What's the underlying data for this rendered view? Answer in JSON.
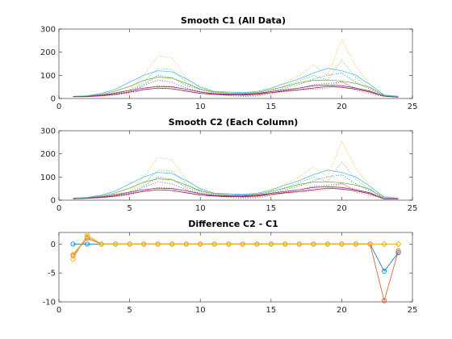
{
  "chart_data": [
    {
      "type": "line",
      "title": "Smooth C1 (All Data)",
      "xlim": [
        0,
        25
      ],
      "ylim": [
        0,
        300
      ],
      "xticks": [
        "0",
        "5",
        "10",
        "15",
        "20",
        "25"
      ],
      "yticks": [
        "0",
        "100",
        "200",
        "300"
      ],
      "grid": false,
      "x": [
        1,
        2,
        3,
        4,
        5,
        6,
        7,
        8,
        9,
        10,
        11,
        12,
        13,
        14,
        15,
        16,
        17,
        18,
        19,
        20,
        21,
        22,
        23,
        24
      ],
      "series": [
        {
          "style": "dotted",
          "color": "#0072bd",
          "values": [
            9,
            9,
            14,
            22,
            30,
            60,
            100,
            90,
            55,
            38,
            25,
            20,
            15,
            18,
            30,
            45,
            60,
            85,
            100,
            110,
            70,
            40,
            15,
            10
          ]
        },
        {
          "style": "dotted",
          "color": "#d95319",
          "values": [
            8,
            8,
            10,
            15,
            22,
            40,
            55,
            52,
            40,
            30,
            18,
            12,
            8,
            10,
            20,
            30,
            35,
            40,
            45,
            75,
            35,
            20,
            8,
            6
          ]
        },
        {
          "style": "dotted",
          "color": "#edb120",
          "values": [
            9,
            10,
            15,
            25,
            35,
            100,
            185,
            175,
            90,
            45,
            30,
            20,
            18,
            22,
            40,
            70,
            100,
            145,
            100,
            255,
            140,
            60,
            15,
            8
          ]
        },
        {
          "style": "dotted",
          "color": "#7e2f8e",
          "values": [
            8,
            9,
            12,
            18,
            25,
            55,
            80,
            70,
            45,
            30,
            22,
            18,
            12,
            14,
            25,
            35,
            45,
            60,
            65,
            70,
            45,
            25,
            10,
            6
          ]
        },
        {
          "style": "dotted",
          "color": "#77ac30",
          "values": [
            9,
            10,
            15,
            25,
            35,
            70,
            130,
            125,
            70,
            40,
            25,
            20,
            15,
            18,
            35,
            55,
            75,
            100,
            80,
            165,
            90,
            45,
            12,
            8
          ]
        },
        {
          "style": "solid",
          "color": "#4dbeee",
          "values": [
            9,
            12,
            22,
            40,
            70,
            100,
            120,
            115,
            85,
            50,
            30,
            28,
            25,
            30,
            45,
            65,
            85,
            110,
            130,
            120,
            100,
            60,
            15,
            8
          ]
        },
        {
          "style": "solid",
          "color": "#a2142f",
          "values": [
            8,
            8,
            12,
            18,
            28,
            38,
            45,
            42,
            32,
            22,
            18,
            15,
            15,
            18,
            25,
            32,
            38,
            45,
            52,
            48,
            40,
            28,
            10,
            6
          ]
        },
        {
          "style": "solid",
          "color": "#77ac30",
          "values": [
            8,
            10,
            18,
            32,
            52,
            78,
            92,
            88,
            65,
            40,
            28,
            24,
            22,
            26,
            38,
            52,
            68,
            78,
            80,
            75,
            65,
            48,
            12,
            7
          ]
        },
        {
          "style": "solid",
          "color": "#7e2f8e",
          "values": [
            8,
            9,
            14,
            24,
            35,
            45,
            52,
            50,
            40,
            28,
            20,
            18,
            18,
            22,
            30,
            38,
            45,
            55,
            58,
            55,
            45,
            32,
            10,
            6
          ]
        }
      ]
    },
    {
      "type": "line",
      "title": "Smooth C2 (Each Column)",
      "xlim": [
        0,
        25
      ],
      "ylim": [
        0,
        300
      ],
      "xticks": [
        "0",
        "5",
        "10",
        "15",
        "20",
        "25"
      ],
      "yticks": [
        "0",
        "100",
        "200",
        "300"
      ],
      "grid": false,
      "x": [
        1,
        2,
        3,
        4,
        5,
        6,
        7,
        8,
        9,
        10,
        11,
        12,
        13,
        14,
        15,
        16,
        17,
        18,
        19,
        20,
        21,
        22,
        23,
        24
      ],
      "series": [
        {
          "style": "dotted",
          "color": "#0072bd",
          "values": [
            9,
            9,
            14,
            22,
            30,
            60,
            100,
            90,
            55,
            38,
            25,
            20,
            15,
            18,
            30,
            45,
            60,
            85,
            100,
            110,
            70,
            40,
            15,
            10
          ]
        },
        {
          "style": "dotted",
          "color": "#d95319",
          "values": [
            8,
            8,
            10,
            15,
            22,
            40,
            55,
            52,
            40,
            30,
            18,
            12,
            8,
            10,
            20,
            30,
            35,
            40,
            45,
            75,
            35,
            20,
            8,
            6
          ]
        },
        {
          "style": "dotted",
          "color": "#edb120",
          "values": [
            9,
            10,
            15,
            25,
            35,
            100,
            185,
            175,
            90,
            45,
            30,
            20,
            18,
            22,
            40,
            70,
            100,
            145,
            100,
            255,
            140,
            60,
            15,
            8
          ]
        },
        {
          "style": "dotted",
          "color": "#7e2f8e",
          "values": [
            8,
            9,
            12,
            18,
            25,
            55,
            80,
            70,
            45,
            30,
            22,
            18,
            12,
            14,
            25,
            35,
            45,
            60,
            65,
            70,
            45,
            25,
            10,
            6
          ]
        },
        {
          "style": "dotted",
          "color": "#77ac30",
          "values": [
            9,
            10,
            15,
            25,
            35,
            70,
            130,
            125,
            70,
            40,
            25,
            20,
            15,
            18,
            35,
            55,
            75,
            100,
            80,
            165,
            90,
            45,
            12,
            8
          ]
        },
        {
          "style": "solid",
          "color": "#4dbeee",
          "values": [
            9,
            12,
            22,
            40,
            70,
            100,
            120,
            115,
            85,
            50,
            30,
            28,
            25,
            30,
            45,
            65,
            85,
            110,
            130,
            120,
            100,
            60,
            12,
            8
          ]
        },
        {
          "style": "solid",
          "color": "#a2142f",
          "values": [
            6,
            8,
            12,
            18,
            28,
            38,
            45,
            42,
            32,
            22,
            18,
            15,
            15,
            18,
            25,
            32,
            38,
            45,
            52,
            48,
            40,
            28,
            6,
            5
          ]
        },
        {
          "style": "solid",
          "color": "#77ac30",
          "values": [
            6,
            10,
            18,
            32,
            52,
            78,
            92,
            88,
            65,
            40,
            28,
            24,
            22,
            26,
            38,
            52,
            68,
            78,
            80,
            75,
            65,
            48,
            5,
            5
          ]
        },
        {
          "style": "solid",
          "color": "#7e2f8e",
          "values": [
            6,
            9,
            14,
            24,
            35,
            45,
            52,
            50,
            40,
            28,
            20,
            18,
            18,
            22,
            30,
            38,
            45,
            55,
            58,
            55,
            45,
            32,
            5,
            5
          ]
        }
      ]
    },
    {
      "type": "line",
      "title": "Difference C2 - C1",
      "xlim": [
        0,
        25
      ],
      "ylim": [
        -10,
        2
      ],
      "xticks": [
        "0",
        "5",
        "10",
        "15",
        "20",
        "25"
      ],
      "yticks": [
        "-10",
        "-5",
        "0"
      ],
      "grid": false,
      "x": [
        1,
        2,
        3,
        4,
        5,
        6,
        7,
        8,
        9,
        10,
        11,
        12,
        13,
        14,
        15,
        16,
        17,
        18,
        19,
        20,
        21,
        22,
        23,
        24
      ],
      "series": [
        {
          "style": "solid",
          "marker": "circle",
          "color": "#0072bd",
          "values": [
            0,
            0,
            0,
            0,
            0,
            0,
            0,
            0,
            0,
            0,
            0,
            0,
            0,
            0,
            0,
            0,
            0,
            0,
            0,
            0,
            0,
            0,
            -4.7,
            -1.5
          ]
        },
        {
          "style": "solid",
          "marker": "circle",
          "color": "#d95319",
          "values": [
            -2,
            1,
            0,
            0,
            0,
            0,
            0,
            0,
            0,
            0,
            0,
            0,
            0,
            0,
            0,
            0,
            0,
            0,
            0,
            0,
            0,
            0,
            -9.8,
            -1.2
          ]
        },
        {
          "style": "solid",
          "marker": "diamond",
          "color": "#edb120",
          "values": [
            -2.6,
            1.6,
            0,
            0,
            0,
            0,
            0,
            0,
            0,
            0,
            0,
            0,
            0,
            0,
            0,
            0,
            0,
            0,
            0,
            0,
            0,
            0,
            0,
            0
          ]
        },
        {
          "style": "solid",
          "marker": "diamond",
          "color": "#edb120",
          "values": [
            -1.8,
            1.3,
            0,
            0,
            0,
            0,
            0,
            0,
            0,
            0,
            0,
            0,
            0,
            0,
            0,
            0,
            0,
            0,
            0,
            0,
            0,
            0,
            0,
            0
          ]
        }
      ]
    }
  ]
}
